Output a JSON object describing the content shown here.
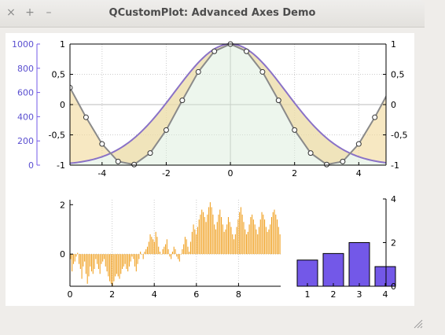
{
  "window": {
    "title": "QCustomPlot: Advanced Axes Demo",
    "close_glyph": "×",
    "maximize_glyph": "+",
    "minimize_glyph": "–"
  },
  "chart_data": [
    {
      "type": "line",
      "x_ticks": [
        "-4",
        "-2",
        "0",
        "2",
        "4"
      ],
      "y_left_ticks": [
        "1000",
        "800",
        "600",
        "400",
        "200",
        "0"
      ],
      "y_right_ticks": [
        "1",
        "0,5",
        "0",
        "-0,5",
        "-1"
      ],
      "y_inner_ticks": [
        "1",
        "0,5",
        "0",
        "-0,5",
        "-1"
      ],
      "xlim": [
        -5,
        4.85
      ],
      "ylim": [
        -1,
        1
      ],
      "series": [
        {
          "color": "#8a72c7",
          "function": "gaussian",
          "values_note": ""
        },
        {
          "color": "#8a8a8a",
          "x": [
            -5,
            -4.5,
            -4,
            -3.5,
            -3,
            -2.5,
            -2,
            -1.5,
            -1,
            -0.5,
            0,
            0.5,
            1,
            1.5,
            2,
            2.5,
            3,
            3.5,
            4,
            4.5,
            5
          ],
          "y": [
            0.28,
            -0.21,
            -0.65,
            -0.94,
            -0.99,
            -0.8,
            -0.42,
            0.07,
            0.54,
            0.88,
            1.0,
            0.88,
            0.54,
            0.07,
            -0.42,
            -0.8,
            -0.99,
            -0.94,
            -0.65,
            -0.21,
            0.28
          ]
        }
      ],
      "fill_between_color": "#f2d89a",
      "fill_under_color": "#d7ead6"
    },
    {
      "type": "bar",
      "x_ticks": [
        "0",
        "2",
        "4",
        "6",
        "8"
      ],
      "y_ticks": [
        "2",
        "0"
      ],
      "xlim": [
        0,
        10
      ],
      "ylim": [
        -1.3,
        2.2
      ],
      "bar_color": "#f0a020",
      "values": [
        -0.2,
        -0.7,
        -0.4,
        -0.3,
        -0.1,
        0.05,
        -0.4,
        -0.6,
        -1.0,
        -0.5,
        -0.3,
        -0.8,
        -1.2,
        -0.9,
        -0.5,
        -0.7,
        -0.8,
        -0.6,
        -0.2,
        -0.4,
        -0.6,
        -0.8,
        -0.4,
        -0.3,
        -0.2,
        -0.5,
        -0.7,
        -0.9,
        -1.1,
        -1.2,
        -1.3,
        -1.1,
        -0.9,
        -0.8,
        -0.9,
        -1.0,
        -0.8,
        -0.6,
        -0.5,
        -0.4,
        -0.6,
        -0.7,
        -0.5,
        -0.3,
        -0.1,
        -0.2,
        -0.5,
        -0.7,
        -0.4,
        -0.2,
        0.1,
        0.0,
        -0.2,
        0.1,
        0.2,
        0.3,
        0.5,
        0.8,
        0.7,
        0.6,
        0.5,
        0.9,
        0.7,
        0.3,
        0.1,
        0.0,
        0.2,
        0.3,
        0.4,
        0.6,
        0.2,
        -0.1,
        -0.2,
        0.1,
        0.3,
        0.2,
        -0.1,
        -0.2,
        -0.3,
        0.0,
        0.2,
        0.4,
        0.7,
        0.6,
        0.3,
        0.1,
        0.5,
        0.9,
        1.2,
        1.0,
        0.8,
        1.1,
        1.4,
        1.6,
        1.8,
        1.7,
        1.5,
        1.3,
        1.6,
        1.9,
        2.1,
        1.9,
        1.6,
        1.2,
        1.0,
        1.3,
        1.6,
        1.8,
        1.5,
        1.2,
        0.9,
        1.0,
        1.2,
        1.5,
        1.3,
        1.1,
        0.8,
        0.6,
        0.8,
        1.1,
        1.4,
        1.7,
        1.9,
        1.6,
        1.3,
        1.0,
        0.8,
        0.9,
        1.2,
        1.5,
        1.6,
        1.4,
        1.2,
        1.0,
        0.8,
        1.1,
        1.4,
        1.7,
        1.6,
        1.4,
        1.1,
        0.9,
        1.0,
        1.2,
        1.5,
        1.7,
        1.8,
        1.6,
        1.4,
        1.1,
        0.8
      ]
    },
    {
      "type": "bar",
      "categories": [
        "1",
        "2",
        "3",
        "4"
      ],
      "values": [
        1.2,
        1.5,
        2.0,
        0.9
      ],
      "y_ticks": [
        "4",
        "2",
        "0"
      ],
      "ylim": [
        0,
        4
      ],
      "bar_color": "#7358e8"
    }
  ]
}
